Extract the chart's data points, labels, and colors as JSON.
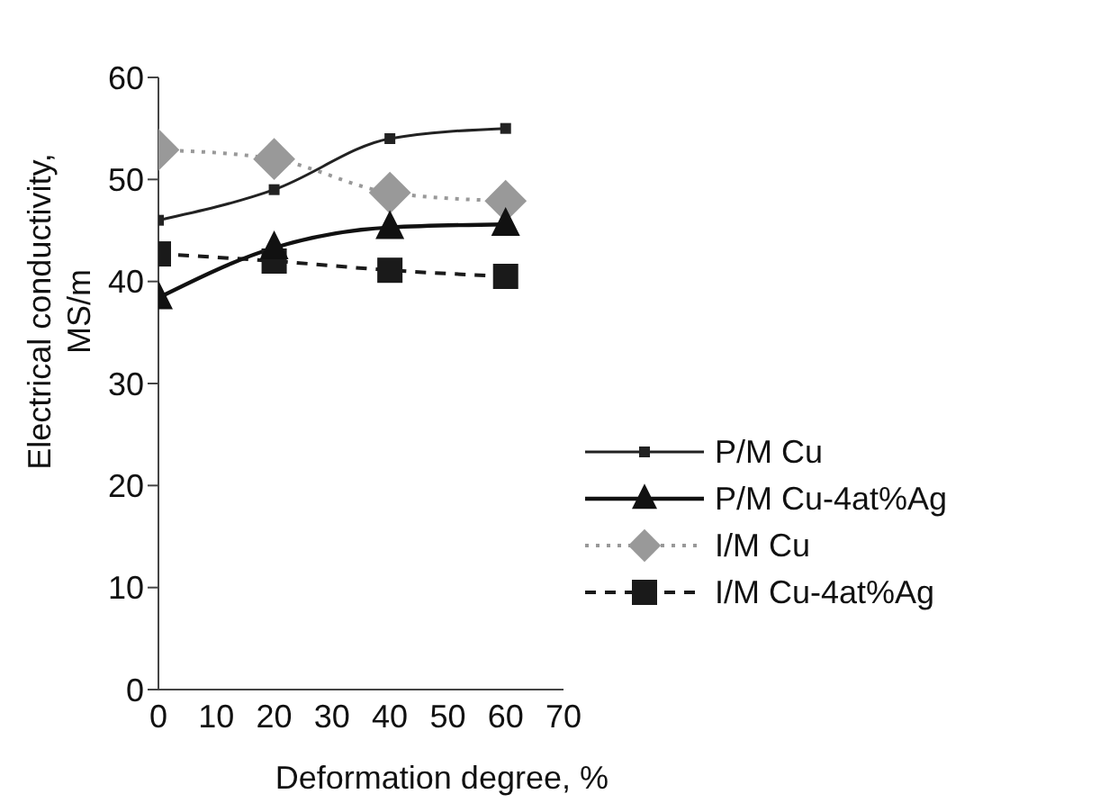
{
  "chart_data": {
    "type": "line",
    "xlabel": "Deformation degree, %",
    "ylabel": "Electrical conductivity, MS/m",
    "x": [
      0,
      20,
      40,
      60
    ],
    "xlim": [
      0,
      70
    ],
    "xticks": [
      0,
      10,
      20,
      30,
      40,
      50,
      60,
      70
    ],
    "ylim": [
      0,
      60
    ],
    "yticks": [
      0,
      10,
      20,
      30,
      40,
      50,
      60
    ],
    "legend": "right",
    "series": [
      {
        "name": "P/M Cu",
        "color": "#222222",
        "values": [
          46,
          49,
          54,
          55
        ],
        "marker": "square",
        "line_style": "solid"
      },
      {
        "name": "P/M Cu-4at%Ag",
        "color": "#111111",
        "values": [
          38.4,
          43.3,
          45.3,
          45.6
        ],
        "marker": "triangle",
        "line_style": "solid"
      },
      {
        "name": "I/M Cu",
        "color": "#999999",
        "values": [
          52.9,
          52,
          48.7,
          47.9
        ],
        "marker": "diamond",
        "line_style": "dotted"
      },
      {
        "name": "I/M Cu-4at%Ag",
        "color": "#1a1a1a",
        "values": [
          42.7,
          42,
          41.1,
          40.5
        ],
        "marker": "square",
        "line_style": "dashed"
      }
    ]
  }
}
